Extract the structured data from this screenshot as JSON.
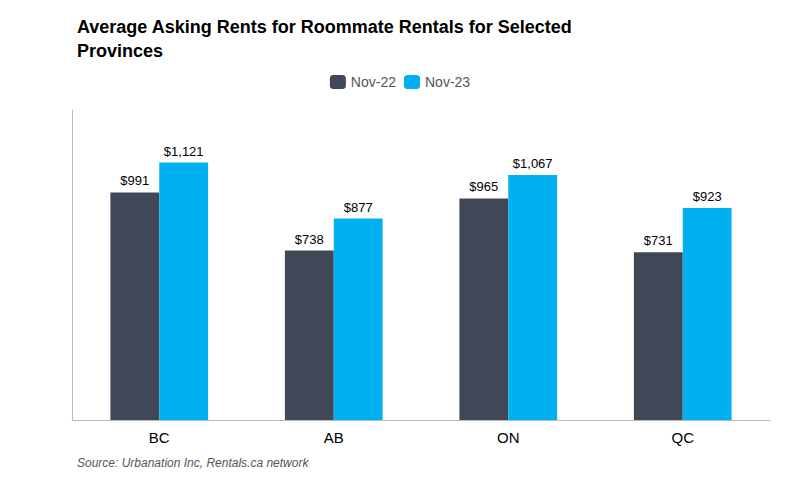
{
  "chart_data": {
    "type": "bar",
    "title": "Average Asking Rents for Roommate Rentals for Selected\nProvinces",
    "categories": [
      "BC",
      "AB",
      "ON",
      "QC"
    ],
    "series": [
      {
        "name": "Nov-22",
        "color": "#404757",
        "values": [
          991,
          738,
          965,
          731
        ],
        "value_labels": [
          "$991",
          "$738",
          "$965",
          "$731"
        ]
      },
      {
        "name": "Nov-23",
        "color": "#00b0f0",
        "values": [
          1121,
          877,
          1067,
          923
        ],
        "value_labels": [
          "$1,121",
          "$877",
          "$1,067",
          "$923"
        ]
      }
    ],
    "ylim": [
      0,
      1350
    ],
    "annotations": [
      "Source: Urbanation Inc, Rentals.ca network"
    ],
    "data_labels": true,
    "tick_labels": "x",
    "grid": false,
    "legend": "top"
  }
}
